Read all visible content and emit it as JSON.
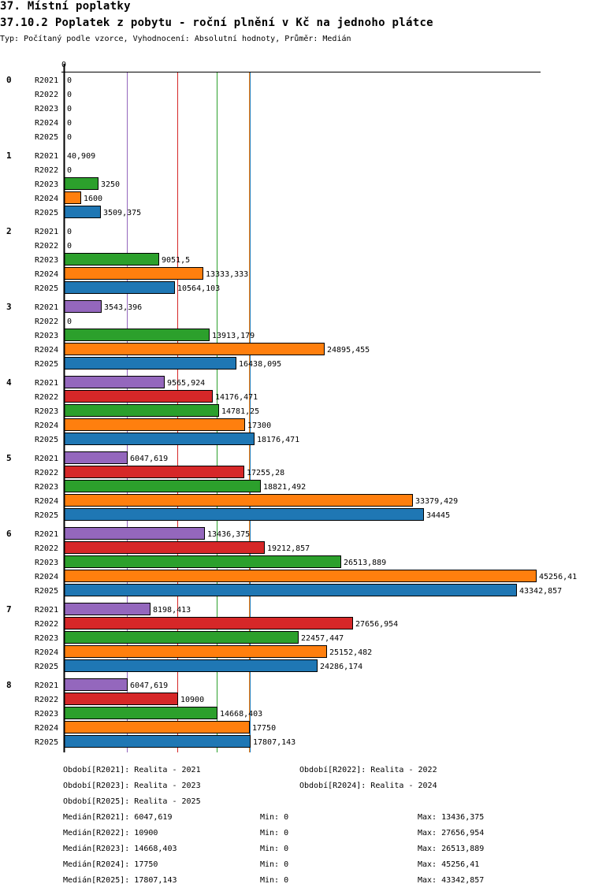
{
  "header": {
    "section": "37. Místní poplatky",
    "title": "37.10.2 Poplatek z pobytu - roční plnění v Kč na jednoho plátce",
    "subtitle": "Typ: Počítaný podle vzorce, Vyhodnocení: Absolutní hodnoty, Průměr: Medián"
  },
  "chart_data": {
    "type": "bar",
    "orientation": "horizontal",
    "title": "37.10.2 Poplatek z pobytu - roční plnění v Kč na jednoho plátce",
    "xlabel": "",
    "ylabel": "",
    "x_tick_labels": [
      "0"
    ],
    "xlim": [
      0,
      45256.41
    ],
    "grid": false,
    "categories": [
      "0",
      "1",
      "2",
      "3",
      "4",
      "5",
      "6",
      "7",
      "8"
    ],
    "series": [
      {
        "name": "R2021",
        "color": "#9467bd",
        "values": [
          0,
          40.909,
          0,
          3543.396,
          9565.924,
          6047.619,
          13436.375,
          8198.413,
          6047.619
        ],
        "labels": [
          "0",
          "40,909",
          "0",
          "3543,396",
          "9565,924",
          "6047,619",
          "13436,375",
          "8198,413",
          "6047,619"
        ]
      },
      {
        "name": "R2022",
        "color": "#d62728",
        "values": [
          0,
          0,
          0,
          0,
          14176.471,
          17255.28,
          19212.857,
          27656.954,
          10900
        ],
        "labels": [
          "0",
          "0",
          "0",
          "0",
          "14176,471",
          "17255,28",
          "19212,857",
          "27656,954",
          "10900"
        ]
      },
      {
        "name": "R2023",
        "color": "#2ca02c",
        "values": [
          0,
          3250,
          9051.5,
          13913.179,
          14781.25,
          18821.492,
          26513.889,
          22457.447,
          14668.403
        ],
        "labels": [
          "0",
          "3250",
          "9051,5",
          "13913,179",
          "14781,25",
          "18821,492",
          "26513,889",
          "22457,447",
          "14668,403"
        ]
      },
      {
        "name": "R2024",
        "color": "#ff7f0e",
        "values": [
          0,
          1600,
          13333.333,
          24895.455,
          17300,
          33379.429,
          45256.41,
          25152.482,
          17750
        ],
        "labels": [
          "0",
          "1600",
          "13333,333",
          "24895,455",
          "17300",
          "33379,429",
          "45256,41",
          "25152,482",
          "17750"
        ]
      },
      {
        "name": "R2025",
        "color": "#1f77b4",
        "values": [
          0,
          3509.375,
          10564.103,
          16438.095,
          18176.471,
          34445,
          43342.857,
          24286.174,
          17807.143
        ],
        "labels": [
          "0",
          "3509,375",
          "10564,103",
          "16438,095",
          "18176,471",
          "34445",
          "43342,857",
          "24286,174",
          "17807,143"
        ]
      }
    ],
    "median_lines": [
      {
        "series": "R2021",
        "value": 6047.619,
        "color": "#9467bd"
      },
      {
        "series": "R2022",
        "value": 10900,
        "color": "#d62728"
      },
      {
        "series": "R2023",
        "value": 14668.403,
        "color": "#2ca02c"
      },
      {
        "series": "R2024",
        "value": 17750,
        "color": "#ff7f0e"
      },
      {
        "series": "R2025",
        "value": 17807.143,
        "color": "#1f77b4"
      }
    ]
  },
  "legend": {
    "periods": [
      "Období[R2021]: Realita - 2021",
      "Období[R2022]: Realita - 2022",
      "Období[R2023]: Realita - 2023",
      "Období[R2024]: Realita - 2024",
      "Období[R2025]: Realita - 2025"
    ],
    "stats": [
      {
        "median": "Medián[R2021]: 6047,619",
        "min": "Min: 0",
        "max": "Max: 13436,375"
      },
      {
        "median": "Medián[R2022]: 10900",
        "min": "Min: 0",
        "max": "Max: 27656,954"
      },
      {
        "median": "Medián[R2023]: 14668,403",
        "min": "Min: 0",
        "max": "Max: 26513,889"
      },
      {
        "median": "Medián[R2024]: 17750",
        "min": "Min: 0",
        "max": "Max: 45256,41"
      },
      {
        "median": "Medián[R2025]: 17807,143",
        "min": "Min: 0",
        "max": "Max: 43342,857"
      }
    ]
  }
}
